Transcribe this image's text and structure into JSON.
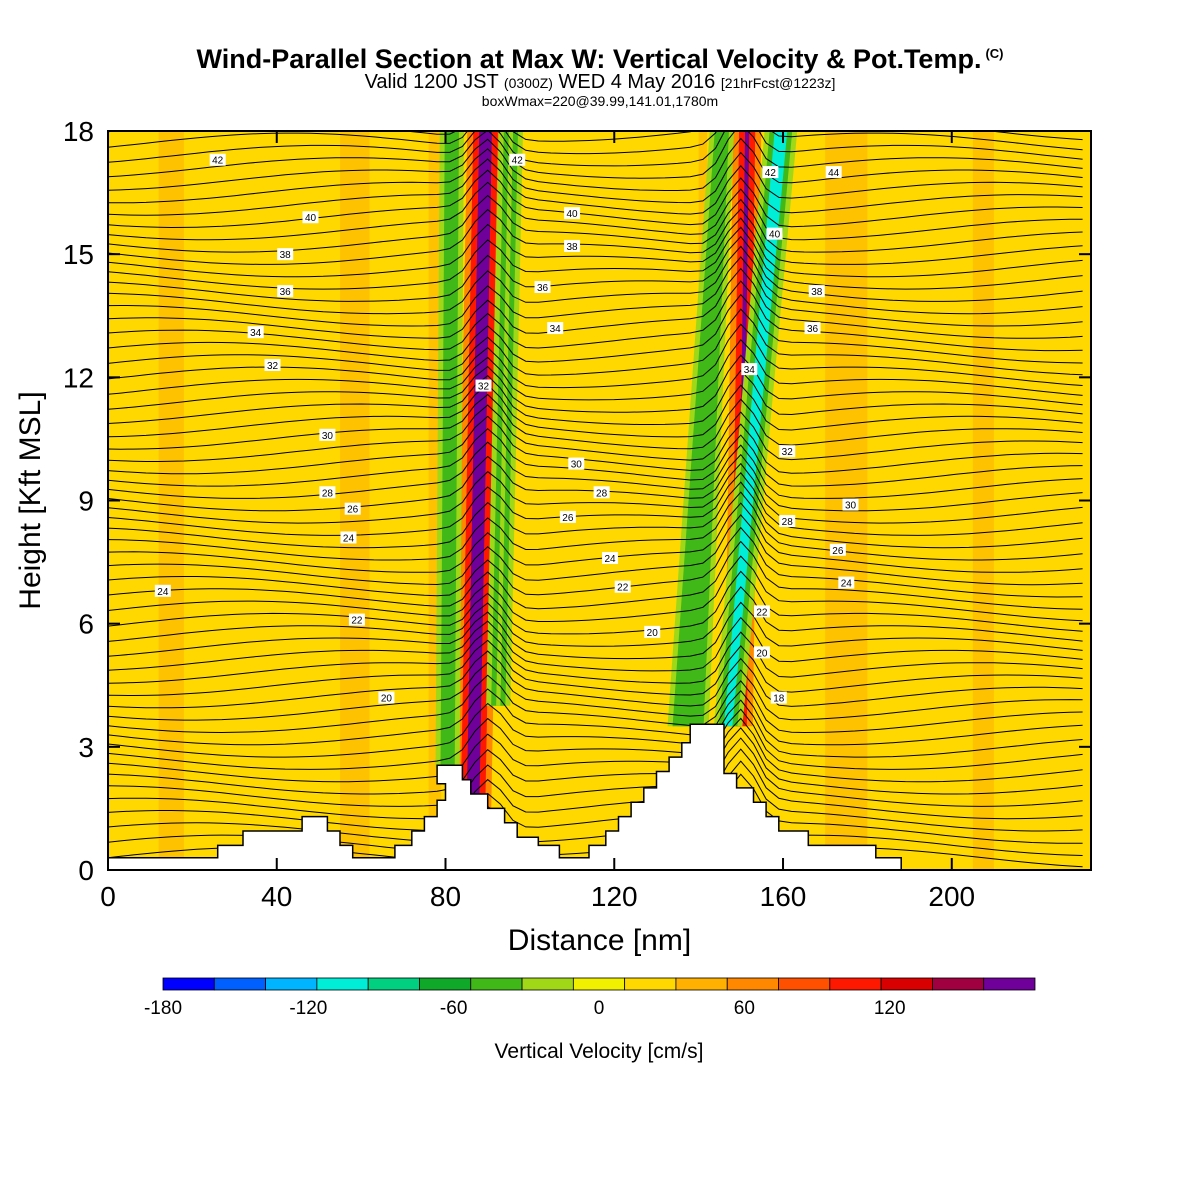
{
  "header": {
    "title": "Wind-Parallel Section at Max W: Vertical Velocity & Pot.Temp.",
    "title_mark": "(C)",
    "valid_prefix": "Valid 1200 JST",
    "valid_utc": "(0300Z)",
    "valid_date": "WED 4 May 2016",
    "forecast": "[21hrFcst@1223z]",
    "box_info": "boxWmax=220@39.99,141.01,1780m"
  },
  "chart_data": {
    "type": "heatmap",
    "xlabel": "Distance [nm]",
    "ylabel": "Height [Kft MSL]",
    "xlim": [
      0,
      233
    ],
    "ylim": [
      0,
      18
    ],
    "x_ticks": [
      "0",
      "40",
      "80",
      "120",
      "160",
      "200"
    ],
    "y_ticks": [
      "0",
      "3",
      "6",
      "9",
      "12",
      "15",
      "18"
    ],
    "colorbar": {
      "title": "Vertical Velocity [cm/s]",
      "tick_labels": [
        "-180",
        "-120",
        "-60",
        "0",
        "60",
        "120"
      ],
      "levels": [
        -180,
        -160,
        -140,
        -120,
        -100,
        -80,
        -60,
        -40,
        -20,
        0,
        20,
        40,
        60,
        80,
        100,
        120,
        140,
        160
      ],
      "colors": [
        "#0000ff",
        "#0060ff",
        "#00b4ff",
        "#00eed8",
        "#00d080",
        "#10a828",
        "#40b818",
        "#a0d818",
        "#f0f000",
        "#ffd800",
        "#ffb000",
        "#ff8800",
        "#ff5000",
        "#ff1800",
        "#d80000",
        "#a00040",
        "#70009a"
      ]
    },
    "terrain": [
      [
        0,
        0.3
      ],
      [
        26,
        0.3
      ],
      [
        26,
        0.6
      ],
      [
        32,
        0.6
      ],
      [
        32,
        0.95
      ],
      [
        46,
        0.95
      ],
      [
        46,
        1.3
      ],
      [
        52,
        1.3
      ],
      [
        52,
        0.95
      ],
      [
        55,
        0.95
      ],
      [
        55,
        0.6
      ],
      [
        58,
        0.6
      ],
      [
        58,
        0.3
      ],
      [
        62,
        0.3
      ],
      [
        62,
        0.3
      ],
      [
        68,
        0.3
      ],
      [
        68,
        0.6
      ],
      [
        72,
        0.6
      ],
      [
        72,
        0.95
      ],
      [
        75,
        0.95
      ],
      [
        75,
        1.3
      ],
      [
        78,
        1.3
      ],
      [
        78,
        1.7
      ],
      [
        80,
        1.7
      ],
      [
        80,
        2.1
      ],
      [
        78,
        2.1
      ],
      [
        78,
        2.55
      ],
      [
        84,
        2.55
      ],
      [
        84,
        2.2
      ],
      [
        86,
        2.2
      ],
      [
        86,
        1.85
      ],
      [
        90,
        1.85
      ],
      [
        90,
        1.5
      ],
      [
        94,
        1.5
      ],
      [
        94,
        1.15
      ],
      [
        97,
        1.15
      ],
      [
        97,
        0.8
      ],
      [
        102,
        0.8
      ],
      [
        102,
        0.6
      ],
      [
        107,
        0.6
      ],
      [
        107,
        0.3
      ],
      [
        114,
        0.3
      ],
      [
        114,
        0.6
      ],
      [
        118,
        0.6
      ],
      [
        118,
        0.95
      ],
      [
        121,
        0.95
      ],
      [
        121,
        1.3
      ],
      [
        124,
        1.3
      ],
      [
        124,
        1.65
      ],
      [
        127,
        1.65
      ],
      [
        127,
        2.0
      ],
      [
        130,
        2.0
      ],
      [
        130,
        2.4
      ],
      [
        133,
        2.4
      ],
      [
        133,
        2.75
      ],
      [
        136,
        2.75
      ],
      [
        136,
        3.1
      ],
      [
        138,
        3.1
      ],
      [
        138,
        3.55
      ],
      [
        146,
        3.55
      ],
      [
        146,
        2.35
      ],
      [
        149,
        2.35
      ],
      [
        149,
        2.0
      ],
      [
        153,
        2.0
      ],
      [
        153,
        1.65
      ],
      [
        156,
        1.65
      ],
      [
        156,
        1.3
      ],
      [
        159,
        1.3
      ],
      [
        159,
        0.95
      ],
      [
        166,
        0.95
      ],
      [
        166,
        0.6
      ],
      [
        182,
        0.6
      ],
      [
        182,
        0.3
      ],
      [
        188,
        0.3
      ],
      [
        188,
        0.0
      ],
      [
        233,
        0.0
      ]
    ],
    "cores": [
      {
        "name": "updraft-core-1",
        "x": [
          88,
          91
        ],
        "x_base": [
          85,
          88
        ],
        "y": [
          1.5,
          18
        ],
        "w": 140
      },
      {
        "name": "downdraft-edge-1-west",
        "x": [
          81,
          82
        ],
        "x_base": [
          80,
          81
        ],
        "y": [
          2.5,
          18
        ],
        "w": -60
      },
      {
        "name": "downdraft-edge-1-east",
        "x": [
          95,
          96
        ],
        "x_base": [
          92,
          93
        ],
        "y": [
          4,
          18
        ],
        "w": -40
      },
      {
        "name": "updraft-core-2",
        "x": [
          151,
          152
        ],
        "x_base": [
          149,
          150
        ],
        "y": [
          3.5,
          18
        ],
        "w": 220
      },
      {
        "name": "downdraft-core-2",
        "x": [
          158,
          161
        ],
        "x_base": [
          146,
          148
        ],
        "y": [
          3.5,
          18
        ],
        "w": -120
      },
      {
        "name": "downdraft-left-2",
        "x": [
          145,
          146
        ],
        "x_base": [
          135,
          140
        ],
        "y": [
          3.5,
          18
        ],
        "w": -60
      }
    ],
    "isentrope_labels": [
      {
        "text": "42",
        "x": 26,
        "y": 17.3
      },
      {
        "text": "40",
        "x": 48,
        "y": 15.9
      },
      {
        "text": "38",
        "x": 42,
        "y": 15.0
      },
      {
        "text": "36",
        "x": 42,
        "y": 14.1
      },
      {
        "text": "34",
        "x": 35,
        "y": 13.1
      },
      {
        "text": "32",
        "x": 39,
        "y": 12.3
      },
      {
        "text": "30",
        "x": 52,
        "y": 10.6
      },
      {
        "text": "28",
        "x": 52,
        "y": 9.2
      },
      {
        "text": "26",
        "x": 58,
        "y": 8.8
      },
      {
        "text": "24",
        "x": 57,
        "y": 8.1
      },
      {
        "text": "24",
        "x": 13,
        "y": 6.8
      },
      {
        "text": "22",
        "x": 59,
        "y": 6.1
      },
      {
        "text": "20",
        "x": 66,
        "y": 4.2
      },
      {
        "text": "42",
        "x": 97,
        "y": 17.3
      },
      {
        "text": "40",
        "x": 110,
        "y": 16.0
      },
      {
        "text": "38",
        "x": 110,
        "y": 15.2
      },
      {
        "text": "36",
        "x": 103,
        "y": 14.2
      },
      {
        "text": "34",
        "x": 106,
        "y": 13.2
      },
      {
        "text": "32",
        "x": 89,
        "y": 11.8
      },
      {
        "text": "30",
        "x": 111,
        "y": 9.9
      },
      {
        "text": "28",
        "x": 117,
        "y": 9.2
      },
      {
        "text": "26",
        "x": 109,
        "y": 8.6
      },
      {
        "text": "24",
        "x": 119,
        "y": 7.6
      },
      {
        "text": "22",
        "x": 122,
        "y": 6.9
      },
      {
        "text": "20",
        "x": 129,
        "y": 5.8
      },
      {
        "text": "42",
        "x": 157,
        "y": 17.0
      },
      {
        "text": "44",
        "x": 172,
        "y": 17.0
      },
      {
        "text": "40",
        "x": 158,
        "y": 15.5
      },
      {
        "text": "38",
        "x": 168,
        "y": 14.1
      },
      {
        "text": "36",
        "x": 167,
        "y": 13.2
      },
      {
        "text": "34",
        "x": 152,
        "y": 12.2
      },
      {
        "text": "32",
        "x": 161,
        "y": 10.2
      },
      {
        "text": "30",
        "x": 176,
        "y": 8.9
      },
      {
        "text": "28",
        "x": 161,
        "y": 8.5
      },
      {
        "text": "26",
        "x": 173,
        "y": 7.8
      },
      {
        "text": "24",
        "x": 175,
        "y": 7.0
      },
      {
        "text": "22",
        "x": 155,
        "y": 6.3
      },
      {
        "text": "20",
        "x": 155,
        "y": 5.3
      },
      {
        "text": "18",
        "x": 159,
        "y": 4.2
      }
    ]
  }
}
